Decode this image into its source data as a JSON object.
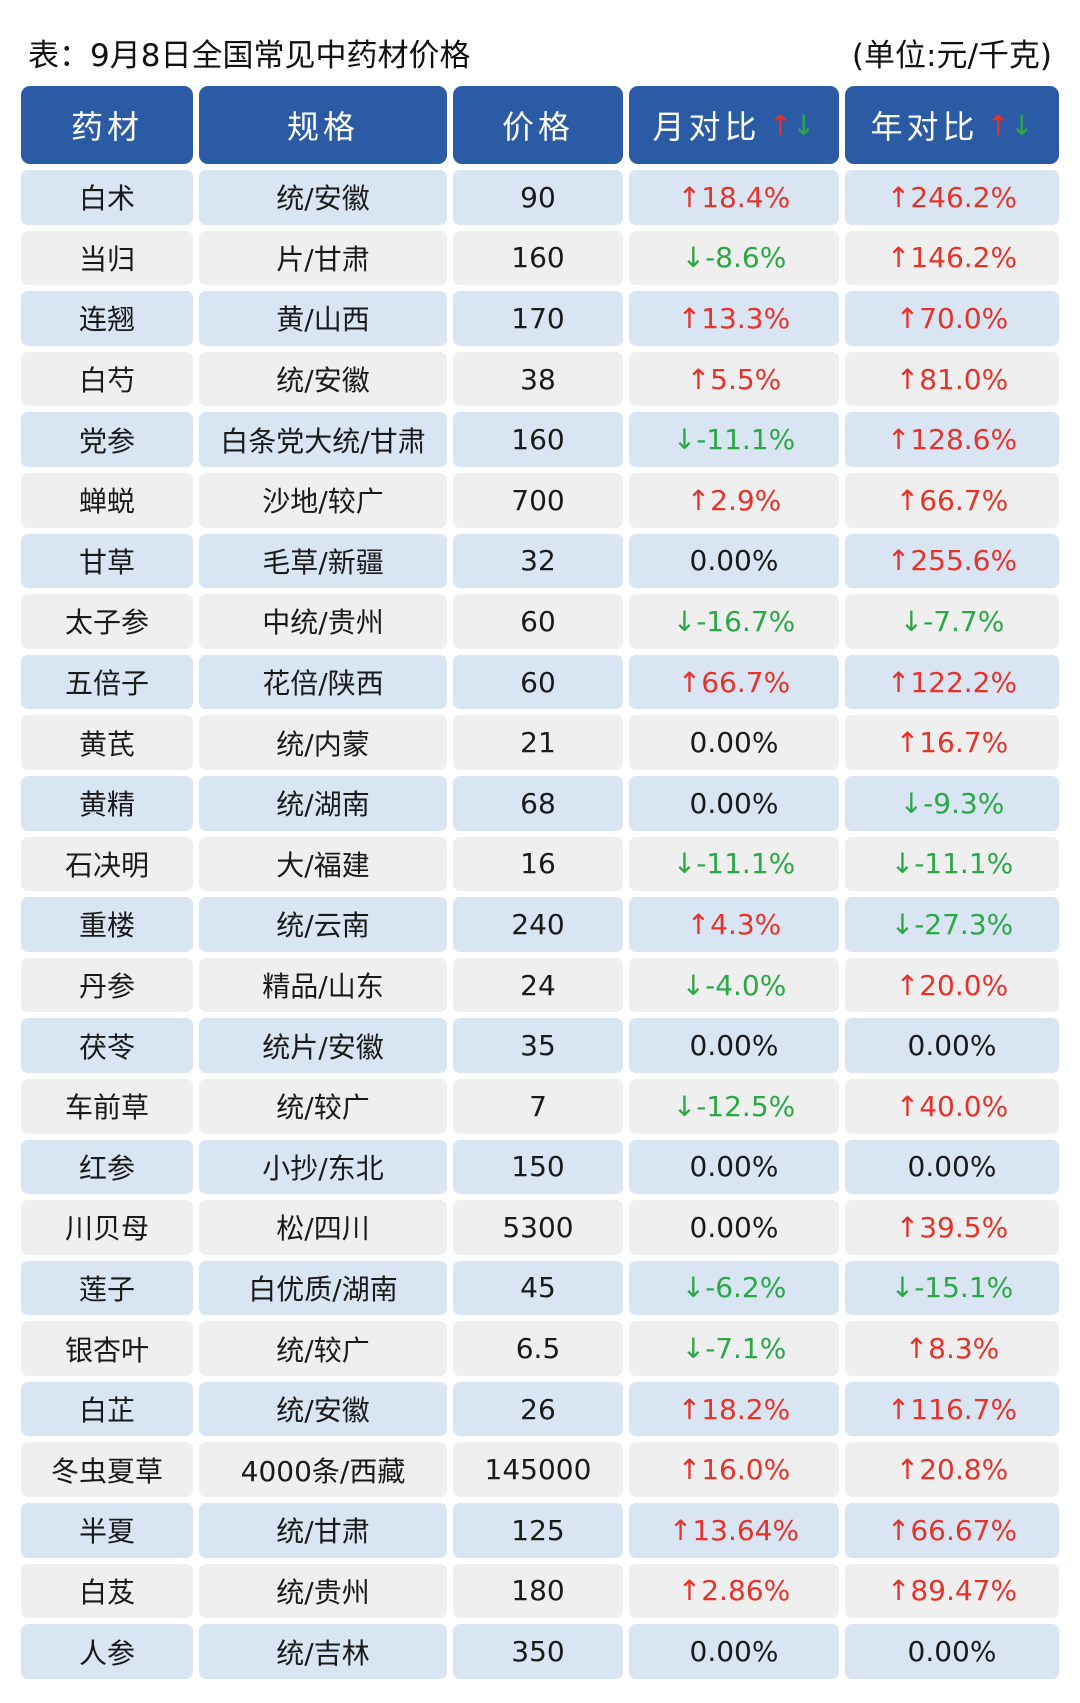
{
  "caption": {
    "title": "表：9月8日全国常见中药材价格",
    "unit": "(单位:元/千克)"
  },
  "columns": [
    "药材",
    "规格",
    "价格",
    "月对比",
    "年对比"
  ],
  "trend_icons": {
    "up": "↑",
    "down": "↓"
  },
  "colors": {
    "header": "#2c5ba6",
    "up": "#e6332a",
    "down": "#2aa845",
    "row_odd": "#d9e5f2",
    "row_even": "#efefef"
  },
  "rows": [
    {
      "name": "白术",
      "spec": "统/安徽",
      "price": "90",
      "month": "↑18.4%",
      "year": "↑246.2%"
    },
    {
      "name": "当归",
      "spec": "片/甘肃",
      "price": "160",
      "month": "↓-8.6%",
      "year": "↑146.2%"
    },
    {
      "name": "连翘",
      "spec": "黄/山西",
      "price": "170",
      "month": "↑13.3%",
      "year": "↑70.0%"
    },
    {
      "name": "白芍",
      "spec": "统/安徽",
      "price": "38",
      "month": "↑5.5%",
      "year": "↑81.0%"
    },
    {
      "name": "党参",
      "spec": "白条党大统/甘肃",
      "price": "160",
      "month": "↓-11.1%",
      "year": "↑128.6%"
    },
    {
      "name": "蝉蜕",
      "spec": "沙地/较广",
      "price": "700",
      "month": "↑2.9%",
      "year": "↑66.7%"
    },
    {
      "name": "甘草",
      "spec": "毛草/新疆",
      "price": "32",
      "month": "0.00%",
      "year": "↑255.6%"
    },
    {
      "name": "太子参",
      "spec": "中统/贵州",
      "price": "60",
      "month": "↓-16.7%",
      "year": "↓-7.7%"
    },
    {
      "name": "五倍子",
      "spec": "花倍/陕西",
      "price": "60",
      "month": "↑66.7%",
      "year": "↑122.2%"
    },
    {
      "name": "黄芪",
      "spec": "统/内蒙",
      "price": "21",
      "month": "0.00%",
      "year": "↑16.7%"
    },
    {
      "name": "黄精",
      "spec": "统/湖南",
      "price": "68",
      "month": "0.00%",
      "year": "↓-9.3%"
    },
    {
      "name": "石决明",
      "spec": "大/福建",
      "price": "16",
      "month": "↓-11.1%",
      "year": "↓-11.1%"
    },
    {
      "name": "重楼",
      "spec": "统/云南",
      "price": "240",
      "month": "↑4.3%",
      "year": "↓-27.3%"
    },
    {
      "name": "丹参",
      "spec": "精品/山东",
      "price": "24",
      "month": "↓-4.0%",
      "year": "↑20.0%"
    },
    {
      "name": "茯苓",
      "spec": "统片/安徽",
      "price": "35",
      "month": "0.00%",
      "year": "0.00%"
    },
    {
      "name": "车前草",
      "spec": "统/较广",
      "price": "7",
      "month": "↓-12.5%",
      "year": "↑40.0%"
    },
    {
      "name": "红参",
      "spec": "小抄/东北",
      "price": "150",
      "month": "0.00%",
      "year": "0.00%"
    },
    {
      "name": "川贝母",
      "spec": "松/四川",
      "price": "5300",
      "month": "0.00%",
      "year": "↑39.5%"
    },
    {
      "name": "莲子",
      "spec": "白优质/湖南",
      "price": "45",
      "month": "↓-6.2%",
      "year": "↓-15.1%"
    },
    {
      "name": "银杏叶",
      "spec": "统/较广",
      "price": "6.5",
      "month": "↓-7.1%",
      "year": "↑8.3%"
    },
    {
      "name": "白芷",
      "spec": "统/安徽",
      "price": "26",
      "month": "↑18.2%",
      "year": "↑116.7%"
    },
    {
      "name": "冬虫夏草",
      "spec": "4000条/西藏",
      "price": "145000",
      "month": "↑16.0%",
      "year": "↑20.8%"
    },
    {
      "name": "半夏",
      "spec": "统/甘肃",
      "price": "125",
      "month": "↑13.64%",
      "year": "↑66.67%"
    },
    {
      "name": "白芨",
      "spec": "统/贵州",
      "price": "180",
      "month": "↑2.86%",
      "year": "↑89.47%"
    },
    {
      "name": "人参",
      "spec": "统/吉林",
      "price": "350",
      "month": "0.00%",
      "year": "0.00%"
    }
  ]
}
